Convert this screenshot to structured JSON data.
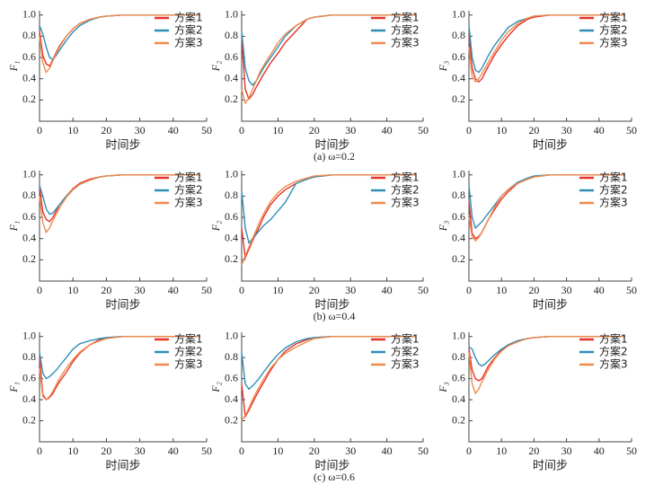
{
  "captions": [
    "(a) ω=0.2",
    "(b) ω=0.4",
    "(c) ω=0.6"
  ],
  "chart_data": [
    {
      "type": "line",
      "ylabel": "F₁",
      "xlabel": "时间步",
      "xlim": [
        0,
        50
      ],
      "ylim": [
        0,
        1.04
      ],
      "xticks": [
        0,
        10,
        20,
        30,
        40,
        50
      ],
      "yticks": [
        0.2,
        0.4,
        0.6,
        0.8,
        {
          "value": 1,
          "label": "1.0"
        }
      ],
      "legend": "upper right",
      "x": [
        0,
        1,
        2,
        3,
        4,
        5,
        6,
        8,
        10,
        12,
        15,
        18,
        20,
        25,
        30,
        40,
        48
      ],
      "series": [
        {
          "name": "方案1",
          "color": "#e8312a",
          "values": [
            0.85,
            0.62,
            0.54,
            0.52,
            0.58,
            0.65,
            0.71,
            0.8,
            0.87,
            0.92,
            0.96,
            0.98,
            0.99,
            1,
            1,
            1,
            1
          ]
        },
        {
          "name": "方案2",
          "color": "#2e8fb5",
          "values": [
            0.9,
            0.82,
            0.7,
            0.6,
            0.58,
            0.62,
            0.67,
            0.76,
            0.84,
            0.9,
            0.95,
            0.98,
            0.99,
            1,
            1,
            1,
            1
          ]
        },
        {
          "name": "方案3",
          "color": "#f08a4b",
          "values": [
            0.8,
            0.55,
            0.46,
            0.5,
            0.57,
            0.64,
            0.7,
            0.8,
            0.87,
            0.92,
            0.96,
            0.98,
            0.99,
            1,
            1,
            1,
            1
          ]
        }
      ]
    },
    {
      "type": "line",
      "ylabel": "F₂",
      "xlabel": "时间步",
      "xlim": [
        0,
        50
      ],
      "ylim": [
        0,
        1.04
      ],
      "xticks": [
        0,
        10,
        20,
        30,
        40,
        50
      ],
      "yticks": [
        0.2,
        0.4,
        0.6,
        0.8,
        {
          "value": 1,
          "label": "1.0"
        }
      ],
      "legend": "upper right",
      "x": [
        0,
        1,
        2,
        3,
        4,
        5,
        6,
        8,
        10,
        12,
        15,
        18,
        20,
        25,
        30,
        40,
        48
      ],
      "series": [
        {
          "name": "方案1",
          "color": "#e8312a",
          "values": [
            0.8,
            0.3,
            0.21,
            0.25,
            0.32,
            0.38,
            0.44,
            0.55,
            0.64,
            0.74,
            0.85,
            0.96,
            0.98,
            1,
            1,
            1,
            1
          ]
        },
        {
          "name": "方案2",
          "color": "#2e8fb5",
          "values": [
            0.85,
            0.5,
            0.38,
            0.34,
            0.38,
            0.44,
            0.5,
            0.6,
            0.7,
            0.8,
            0.9,
            0.96,
            0.98,
            1,
            1,
            1,
            1
          ]
        },
        {
          "name": "方案3",
          "color": "#f08a4b",
          "values": [
            0.3,
            0.17,
            0.22,
            0.3,
            0.38,
            0.46,
            0.52,
            0.63,
            0.74,
            0.82,
            0.9,
            0.96,
            0.98,
            1,
            1,
            1,
            1
          ]
        }
      ]
    },
    {
      "type": "line",
      "ylabel": "F₃",
      "xlabel": "时间步",
      "xlim": [
        0,
        50
      ],
      "ylim": [
        0,
        1.04
      ],
      "xticks": [
        0,
        10,
        20,
        30,
        40,
        50
      ],
      "yticks": [
        0.2,
        0.4,
        0.6,
        0.8,
        {
          "value": 1,
          "label": "1.0"
        }
      ],
      "legend": "upper right",
      "x": [
        0,
        1,
        2,
        3,
        4,
        5,
        6,
        8,
        10,
        12,
        15,
        18,
        20,
        25,
        30,
        40,
        48
      ],
      "series": [
        {
          "name": "方案1",
          "color": "#e8312a",
          "values": [
            0.8,
            0.5,
            0.4,
            0.37,
            0.4,
            0.46,
            0.52,
            0.63,
            0.72,
            0.8,
            0.9,
            0.96,
            0.98,
            1,
            1,
            1,
            1
          ]
        },
        {
          "name": "方案2",
          "color": "#2e8fb5",
          "values": [
            0.9,
            0.6,
            0.48,
            0.46,
            0.5,
            0.56,
            0.62,
            0.72,
            0.8,
            0.88,
            0.94,
            0.97,
            0.99,
            1,
            1,
            1,
            1
          ]
        },
        {
          "name": "方案3",
          "color": "#f08a4b",
          "values": [
            0.7,
            0.42,
            0.37,
            0.4,
            0.45,
            0.5,
            0.56,
            0.66,
            0.76,
            0.84,
            0.92,
            0.97,
            0.99,
            1,
            1,
            1,
            1
          ]
        }
      ]
    },
    {
      "type": "line",
      "ylabel": "F₁",
      "xlabel": "时间步",
      "xlim": [
        0,
        50
      ],
      "ylim": [
        0,
        1.04
      ],
      "xticks": [
        0,
        10,
        20,
        30,
        40,
        50
      ],
      "yticks": [
        0.2,
        0.4,
        0.6,
        0.8,
        {
          "value": 1,
          "label": "1.0"
        }
      ],
      "legend": "upper right",
      "x": [
        0,
        1,
        2,
        3,
        4,
        5,
        6,
        8,
        10,
        12,
        15,
        18,
        20,
        25,
        30,
        40,
        48
      ],
      "series": [
        {
          "name": "方案1",
          "color": "#e8312a",
          "values": [
            0.88,
            0.65,
            0.58,
            0.56,
            0.6,
            0.66,
            0.72,
            0.8,
            0.87,
            0.92,
            0.96,
            0.98,
            0.99,
            1,
            1,
            1,
            1
          ]
        },
        {
          "name": "方案2",
          "color": "#2e8fb5",
          "values": [
            0.9,
            0.8,
            0.68,
            0.63,
            0.64,
            0.68,
            0.72,
            0.8,
            0.86,
            0.91,
            0.95,
            0.98,
            0.99,
            1,
            1,
            1,
            1
          ]
        },
        {
          "name": "方案3",
          "color": "#f08a4b",
          "values": [
            0.8,
            0.55,
            0.46,
            0.5,
            0.57,
            0.63,
            0.69,
            0.79,
            0.86,
            0.91,
            0.95,
            0.98,
            0.99,
            1,
            1,
            1,
            1
          ]
        }
      ]
    },
    {
      "type": "line",
      "ylabel": "F₂",
      "xlabel": "时间步",
      "xlim": [
        0,
        50
      ],
      "ylim": [
        0,
        1.04
      ],
      "xticks": [
        0,
        10,
        20,
        30,
        40,
        50
      ],
      "yticks": [
        0.2,
        0.4,
        0.6,
        0.8,
        {
          "value": 1,
          "label": "1.0"
        }
      ],
      "legend": "upper right",
      "x": [
        0,
        1,
        2,
        3,
        4,
        5,
        6,
        8,
        10,
        12,
        15,
        18,
        20,
        25,
        30,
        40,
        48
      ],
      "series": [
        {
          "name": "方案1",
          "color": "#e8312a",
          "values": [
            0.5,
            0.22,
            0.3,
            0.38,
            0.45,
            0.52,
            0.6,
            0.72,
            0.8,
            0.86,
            0.92,
            0.96,
            0.98,
            1,
            1,
            1,
            1
          ]
        },
        {
          "name": "方案2",
          "color": "#2e8fb5",
          "values": [
            0.85,
            0.5,
            0.36,
            0.4,
            0.44,
            0.48,
            0.52,
            0.58,
            0.66,
            0.74,
            0.92,
            0.96,
            0.98,
            1,
            1,
            1,
            1
          ]
        },
        {
          "name": "方案3",
          "color": "#f08a4b",
          "values": [
            0.15,
            0.24,
            0.32,
            0.4,
            0.48,
            0.56,
            0.63,
            0.75,
            0.83,
            0.89,
            0.94,
            0.97,
            0.99,
            1,
            1,
            1,
            1
          ]
        }
      ]
    },
    {
      "type": "line",
      "ylabel": "F₃",
      "xlabel": "时间步",
      "xlim": [
        0,
        50
      ],
      "ylim": [
        0,
        1.04
      ],
      "xticks": [
        0,
        10,
        20,
        30,
        40,
        50
      ],
      "yticks": [
        0.2,
        0.4,
        0.6,
        0.8,
        {
          "value": 1,
          "label": "1.0"
        }
      ],
      "legend": "upper right",
      "x": [
        0,
        1,
        2,
        3,
        4,
        5,
        6,
        8,
        10,
        12,
        15,
        18,
        20,
        25,
        30,
        40,
        48
      ],
      "series": [
        {
          "name": "方案1",
          "color": "#e8312a",
          "values": [
            0.75,
            0.45,
            0.4,
            0.42,
            0.46,
            0.52,
            0.58,
            0.68,
            0.77,
            0.84,
            0.92,
            0.96,
            0.98,
            1,
            1,
            1,
            1
          ]
        },
        {
          "name": "方案2",
          "color": "#2e8fb5",
          "values": [
            0.9,
            0.6,
            0.5,
            0.53,
            0.56,
            0.6,
            0.64,
            0.72,
            0.8,
            0.86,
            0.93,
            0.97,
            0.99,
            1,
            1,
            1,
            1
          ]
        },
        {
          "name": "方案3",
          "color": "#f08a4b",
          "values": [
            0.6,
            0.42,
            0.38,
            0.41,
            0.46,
            0.52,
            0.58,
            0.7,
            0.8,
            0.86,
            0.92,
            0.96,
            0.98,
            1,
            1,
            1,
            1
          ]
        }
      ]
    },
    {
      "type": "line",
      "ylabel": "F₁",
      "xlabel": "时间步",
      "xlim": [
        0,
        50
      ],
      "ylim": [
        0,
        1.04
      ],
      "xticks": [
        0,
        10,
        20,
        30,
        40,
        50
      ],
      "yticks": [
        0.2,
        0.4,
        0.6,
        0.8,
        {
          "value": 1,
          "label": "1.0"
        }
      ],
      "legend": "upper right",
      "x": [
        0,
        1,
        2,
        3,
        4,
        5,
        6,
        8,
        10,
        12,
        15,
        18,
        20,
        25,
        30,
        40,
        48
      ],
      "series": [
        {
          "name": "方案1",
          "color": "#e8312a",
          "values": [
            0.8,
            0.45,
            0.4,
            0.42,
            0.46,
            0.52,
            0.57,
            0.66,
            0.76,
            0.84,
            0.92,
            0.97,
            0.99,
            1,
            1,
            1,
            1
          ]
        },
        {
          "name": "方案2",
          "color": "#2e8fb5",
          "values": [
            0.85,
            0.65,
            0.6,
            0.62,
            0.65,
            0.68,
            0.72,
            0.8,
            0.88,
            0.93,
            0.96,
            0.98,
            0.99,
            1,
            1,
            1,
            1
          ]
        },
        {
          "name": "方案3",
          "color": "#f08a4b",
          "values": [
            0.7,
            0.43,
            0.4,
            0.43,
            0.48,
            0.54,
            0.6,
            0.7,
            0.78,
            0.85,
            0.92,
            0.96,
            0.98,
            1,
            1,
            1,
            1
          ]
        }
      ]
    },
    {
      "type": "line",
      "ylabel": "F₂",
      "xlabel": "时间步",
      "xlim": [
        0,
        50
      ],
      "ylim": [
        0,
        1.04
      ],
      "xticks": [
        0,
        10,
        20,
        30,
        40,
        50
      ],
      "yticks": [
        0.2,
        0.4,
        0.6,
        0.8,
        {
          "value": 1,
          "label": "1.0"
        }
      ],
      "legend": "upper right",
      "x": [
        0,
        1,
        2,
        3,
        4,
        5,
        6,
        8,
        10,
        12,
        15,
        18,
        20,
        25,
        30,
        40,
        48
      ],
      "series": [
        {
          "name": "方案1",
          "color": "#e8312a",
          "values": [
            0.55,
            0.24,
            0.3,
            0.37,
            0.44,
            0.5,
            0.56,
            0.68,
            0.78,
            0.86,
            0.93,
            0.97,
            0.99,
            1,
            1,
            1,
            1
          ]
        },
        {
          "name": "方案2",
          "color": "#2e8fb5",
          "values": [
            0.85,
            0.55,
            0.5,
            0.53,
            0.57,
            0.61,
            0.66,
            0.75,
            0.83,
            0.89,
            0.95,
            0.98,
            0.99,
            1,
            1,
            1,
            1
          ]
        },
        {
          "name": "方案3",
          "color": "#f08a4b",
          "values": [
            0.2,
            0.25,
            0.32,
            0.4,
            0.47,
            0.53,
            0.59,
            0.7,
            0.78,
            0.84,
            0.9,
            0.95,
            0.98,
            1,
            1,
            1,
            1
          ]
        }
      ]
    },
    {
      "type": "line",
      "ylabel": "F₃",
      "xlabel": "时间步",
      "xlim": [
        0,
        50
      ],
      "ylim": [
        0,
        1.04
      ],
      "xticks": [
        0,
        10,
        20,
        30,
        40,
        50
      ],
      "yticks": [
        0.2,
        0.4,
        0.6,
        0.8,
        {
          "value": 1,
          "label": "1.0"
        }
      ],
      "legend": "upper right",
      "x": [
        0,
        1,
        2,
        3,
        4,
        5,
        6,
        8,
        10,
        12,
        15,
        18,
        20,
        25,
        30,
        40,
        48
      ],
      "series": [
        {
          "name": "方案1",
          "color": "#e8312a",
          "values": [
            0.88,
            0.68,
            0.6,
            0.58,
            0.6,
            0.66,
            0.72,
            0.8,
            0.87,
            0.92,
            0.96,
            0.98,
            0.99,
            1,
            1,
            1,
            1
          ]
        },
        {
          "name": "方案2",
          "color": "#2e8fb5",
          "values": [
            0.9,
            0.88,
            0.8,
            0.74,
            0.72,
            0.74,
            0.77,
            0.83,
            0.88,
            0.92,
            0.96,
            0.98,
            0.99,
            1,
            1,
            1,
            1
          ]
        },
        {
          "name": "方案3",
          "color": "#f08a4b",
          "values": [
            0.85,
            0.55,
            0.46,
            0.5,
            0.57,
            0.63,
            0.69,
            0.79,
            0.86,
            0.91,
            0.95,
            0.98,
            0.99,
            1,
            1,
            1,
            1
          ]
        }
      ]
    }
  ]
}
